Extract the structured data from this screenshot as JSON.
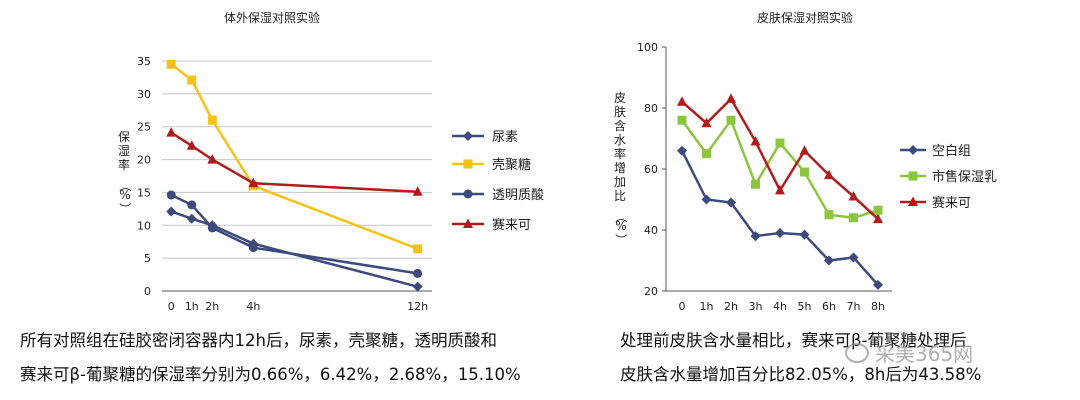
{
  "chart_data": [
    {
      "type": "line",
      "title": "体外保湿对照实验",
      "ylabel": "保湿率（%）",
      "xlabel": "",
      "categories": [
        "0",
        "1h",
        "2h",
        "4h",
        "12h"
      ],
      "x": [
        0,
        1,
        2,
        4,
        12
      ],
      "x_tick_labels": [
        "0",
        "1h",
        "2h",
        "4h",
        "12h"
      ],
      "ylim": [
        0,
        35
      ],
      "yticks": [
        0,
        5,
        10,
        15,
        20,
        25,
        30,
        35
      ],
      "grid": true,
      "legend": "right",
      "series": [
        {
          "name": "尿素",
          "values": [
            12.1,
            11.0,
            10.0,
            7.2,
            0.66
          ],
          "color": "#3d4a7e",
          "marker": "diamond"
        },
        {
          "name": "壳聚糖",
          "values": [
            34.5,
            32.1,
            26.0,
            16.0,
            6.42
          ],
          "color": "#f5c218",
          "marker": "square"
        },
        {
          "name": "透明质酸",
          "values": [
            14.6,
            13.1,
            9.6,
            6.6,
            2.68
          ],
          "color": "#3d4a7e",
          "marker": "circle"
        },
        {
          "name": "赛来可",
          "values": [
            24.1,
            22.1,
            20.0,
            16.4,
            15.1
          ],
          "color": "#b01c1c",
          "marker": "triangle"
        }
      ]
    },
    {
      "type": "line",
      "title": "皮肤保湿对照实验",
      "ylabel": "皮肤含水率增加比（%）",
      "xlabel": "",
      "categories": [
        "0",
        "1h",
        "2h",
        "3h",
        "4h",
        "5h",
        "6h",
        "7h",
        "8h"
      ],
      "ylim": [
        20,
        100
      ],
      "yticks": [
        20,
        40,
        60,
        80,
        100
      ],
      "grid": false,
      "legend": "right",
      "series": [
        {
          "name": "空白组",
          "values": [
            66,
            50,
            49,
            38,
            39,
            38.5,
            30,
            31,
            22
          ],
          "color": "#3d4a7e",
          "marker": "diamond"
        },
        {
          "name": "市售保湿乳",
          "values": [
            76,
            65,
            76,
            55,
            68.5,
            59,
            45,
            44,
            46.5
          ],
          "color": "#8cc63f",
          "marker": "square"
        },
        {
          "name": "赛来可",
          "values": [
            82.05,
            75,
            83,
            69,
            53,
            66,
            58,
            51,
            43.58
          ],
          "color": "#b01c1c",
          "marker": "triangle"
        }
      ]
    }
  ],
  "captions": {
    "left": [
      "所有对照组在硅胶密闭容器内12h后，尿素，壳聚糖，透明质酸和",
      "赛来可β-葡聚糖的保湿率分别为0.66%，6.42%，2.68%，15.10%"
    ],
    "right": [
      "处理前皮肤含水量相比，赛来可β-葡聚糖处理后",
      "皮肤含水量增加百分比82.05%，8h后为43.58%"
    ]
  },
  "watermark": {
    "text": "采美365网",
    "icon": "wechat-icon"
  }
}
